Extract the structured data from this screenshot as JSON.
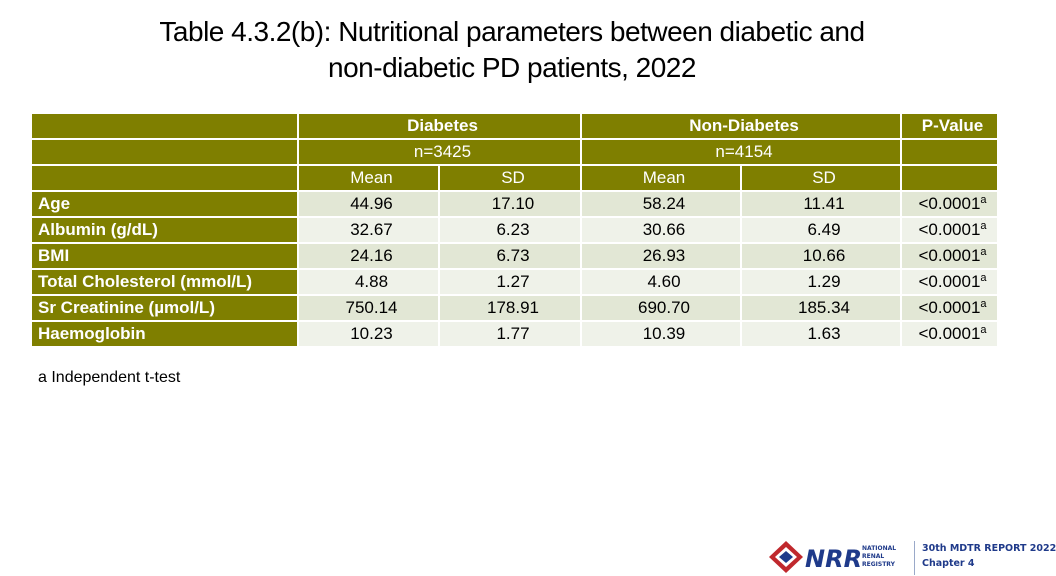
{
  "title": {
    "line1": "Table 4.3.2(b): Nutritional parameters between diabetic and",
    "line2": "non-diabetic PD patients, 2022"
  },
  "table": {
    "groups": {
      "diabetes": "Diabetes",
      "non_diabetes": "Non-Diabetes",
      "p_value": "P-Value"
    },
    "counts": {
      "diabetes": "n=3425",
      "non_diabetes": "n=4154"
    },
    "stats": {
      "d_mean": "Mean",
      "d_sd": "SD",
      "n_mean": "Mean",
      "n_sd": "SD"
    },
    "rows": [
      {
        "label": "Age",
        "d_mean": "44.96",
        "d_sd": "17.10",
        "n_mean": "58.24",
        "n_sd": "11.41",
        "p": "<0.0001",
        "sup": "a"
      },
      {
        "label": "Albumin (g/dL)",
        "d_mean": "32.67",
        "d_sd": "6.23",
        "n_mean": "30.66",
        "n_sd": "6.49",
        "p": "<0.0001",
        "sup": "a"
      },
      {
        "label": "BMI",
        "d_mean": "24.16",
        "d_sd": "6.73",
        "n_mean": "26.93",
        "n_sd": "10.66",
        "p": "<0.0001",
        "sup": "a"
      },
      {
        "label": "Total Cholesterol (mmol/L)",
        "d_mean": "4.88",
        "d_sd": "1.27",
        "n_mean": "4.60",
        "n_sd": "1.29",
        "p": "<0.0001",
        "sup": "a"
      },
      {
        "label": "Sr Creatinine (µmol/L)",
        "d_mean": "750.14",
        "d_sd": "178.91",
        "n_mean": "690.70",
        "n_sd": "185.34",
        "p": "<0.0001",
        "sup": "a"
      },
      {
        "label": "Haemoglobin",
        "d_mean": "10.23",
        "d_sd": "1.77",
        "n_mean": "10.39",
        "n_sd": "1.63",
        "p": "<0.0001",
        "sup": "a"
      }
    ]
  },
  "footnote": "a Independent t-test",
  "footer": {
    "logo_text": "NRR",
    "registry_lines": [
      "NATIONAL",
      "RENAL",
      "REGISTRY"
    ],
    "report_title": "30th MDTR REPORT 2022",
    "chapter": "Chapter 4"
  },
  "colors": {
    "header_olive": "#7f7f00",
    "row_even": "#e2e7d5",
    "row_odd": "#eff2e9",
    "brand_blue": "#1f3a8a",
    "brand_red": "#c0282d"
  }
}
